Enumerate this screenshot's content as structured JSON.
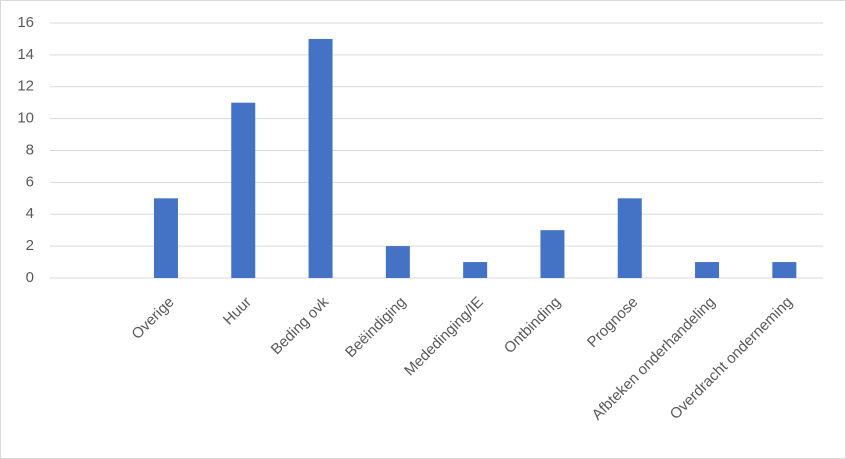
{
  "chart_data": {
    "type": "bar",
    "categories": [
      null,
      "Overige",
      "Huur",
      "Beding ovk",
      "Beëindiging",
      "Mededinging/IE",
      "Ontbinding",
      "Prognose",
      "Afbteken onderhandeling",
      "Overdracht onderneming"
    ],
    "values": [
      null,
      5,
      11,
      15,
      2,
      1,
      3,
      5,
      1,
      1
    ],
    "color": "#4472c4",
    "ylim": [
      0,
      16
    ],
    "yticks": [
      0,
      2,
      4,
      6,
      8,
      10,
      12,
      14,
      16
    ],
    "grid": true
  }
}
